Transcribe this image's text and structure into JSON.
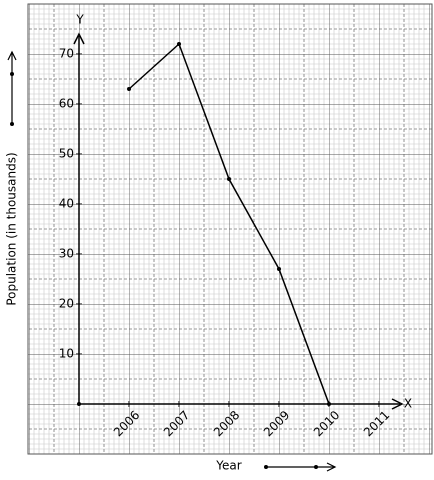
{
  "chart_data": {
    "type": "line",
    "x_label": "Year",
    "y_label": "Population (in thousands)",
    "x_axis_name": "X",
    "y_axis_name": "Y",
    "x": [
      2006,
      2007,
      2008,
      2009,
      2010
    ],
    "values": [
      63,
      72,
      45,
      27,
      0
    ],
    "color": "#000000",
    "xlim": [
      2005,
      2011.4
    ],
    "xticks": [
      2006,
      2007,
      2008,
      2009,
      2010,
      2011
    ],
    "ylim": [
      0,
      74
    ],
    "yticks": [
      10,
      20,
      30,
      40,
      50,
      60,
      70
    ],
    "grid": true
  }
}
